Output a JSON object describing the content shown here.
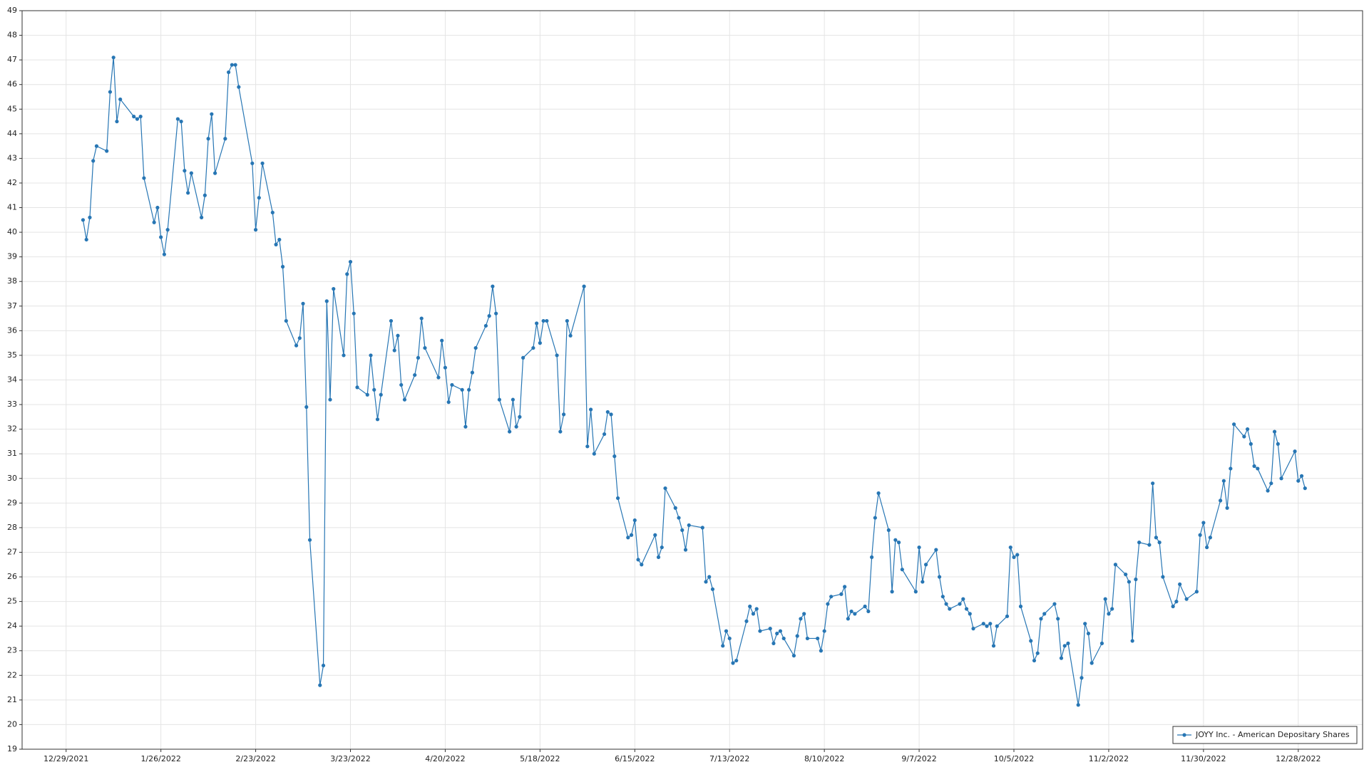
{
  "chart_data": {
    "type": "line",
    "x": [
      "1/3/2022",
      "1/4/2022",
      "1/5/2022",
      "1/6/2022",
      "1/7/2022",
      "1/10/2022",
      "1/11/2022",
      "1/12/2022",
      "1/13/2022",
      "1/14/2022",
      "1/18/2022",
      "1/19/2022",
      "1/20/2022",
      "1/21/2022",
      "1/24/2022",
      "1/25/2022",
      "1/26/2022",
      "1/27/2022",
      "1/28/2022",
      "1/31/2022",
      "2/1/2022",
      "2/2/2022",
      "2/3/2022",
      "2/4/2022",
      "2/7/2022",
      "2/8/2022",
      "2/9/2022",
      "2/10/2022",
      "2/11/2022",
      "2/14/2022",
      "2/15/2022",
      "2/16/2022",
      "2/17/2022",
      "2/18/2022",
      "2/22/2022",
      "2/23/2022",
      "2/24/2022",
      "2/25/2022",
      "2/28/2022",
      "3/1/2022",
      "3/2/2022",
      "3/3/2022",
      "3/4/2022",
      "3/7/2022",
      "3/8/2022",
      "3/9/2022",
      "3/10/2022",
      "3/11/2022",
      "3/14/2022",
      "3/15/2022",
      "3/16/2022",
      "3/17/2022",
      "3/18/2022",
      "3/21/2022",
      "3/22/2022",
      "3/23/2022",
      "3/24/2022",
      "3/25/2022",
      "3/28/2022",
      "3/29/2022",
      "3/30/2022",
      "3/31/2022",
      "4/1/2022",
      "4/4/2022",
      "4/5/2022",
      "4/6/2022",
      "4/7/2022",
      "4/8/2022",
      "4/11/2022",
      "4/12/2022",
      "4/13/2022",
      "4/14/2022",
      "4/18/2022",
      "4/19/2022",
      "4/20/2022",
      "4/21/2022",
      "4/22/2022",
      "4/25/2022",
      "4/26/2022",
      "4/27/2022",
      "4/28/2022",
      "4/29/2022",
      "5/2/2022",
      "5/3/2022",
      "5/4/2022",
      "5/5/2022",
      "5/6/2022",
      "5/9/2022",
      "5/10/2022",
      "5/11/2022",
      "5/12/2022",
      "5/13/2022",
      "5/16/2022",
      "5/17/2022",
      "5/18/2022",
      "5/19/2022",
      "5/20/2022",
      "5/23/2022",
      "5/24/2022",
      "5/25/2022",
      "5/26/2022",
      "5/27/2022",
      "5/31/2022",
      "6/1/2022",
      "6/2/2022",
      "6/3/2022",
      "6/6/2022",
      "6/7/2022",
      "6/8/2022",
      "6/9/2022",
      "6/10/2022",
      "6/13/2022",
      "6/14/2022",
      "6/15/2022",
      "6/16/2022",
      "6/17/2022",
      "6/21/2022",
      "6/22/2022",
      "6/23/2022",
      "6/24/2022",
      "6/27/2022",
      "6/28/2022",
      "6/29/2022",
      "6/30/2022",
      "7/1/2022",
      "7/5/2022",
      "7/6/2022",
      "7/7/2022",
      "7/8/2022",
      "7/11/2022",
      "7/12/2022",
      "7/13/2022",
      "7/14/2022",
      "7/15/2022",
      "7/18/2022",
      "7/19/2022",
      "7/20/2022",
      "7/21/2022",
      "7/22/2022",
      "7/25/2022",
      "7/26/2022",
      "7/27/2022",
      "7/28/2022",
      "7/29/2022",
      "8/1/2022",
      "8/2/2022",
      "8/3/2022",
      "8/4/2022",
      "8/5/2022",
      "8/8/2022",
      "8/9/2022",
      "8/10/2022",
      "8/11/2022",
      "8/12/2022",
      "8/15/2022",
      "8/16/2022",
      "8/17/2022",
      "8/18/2022",
      "8/19/2022",
      "8/22/2022",
      "8/23/2022",
      "8/24/2022",
      "8/25/2022",
      "8/26/2022",
      "8/29/2022",
      "8/30/2022",
      "8/31/2022",
      "9/1/2022",
      "9/2/2022",
      "9/6/2022",
      "9/7/2022",
      "9/8/2022",
      "9/9/2022",
      "9/12/2022",
      "9/13/2022",
      "9/14/2022",
      "9/15/2022",
      "9/16/2022",
      "9/19/2022",
      "9/20/2022",
      "9/21/2022",
      "9/22/2022",
      "9/23/2022",
      "9/26/2022",
      "9/27/2022",
      "9/28/2022",
      "9/29/2022",
      "9/30/2022",
      "10/3/2022",
      "10/4/2022",
      "10/5/2022",
      "10/6/2022",
      "10/7/2022",
      "10/10/2022",
      "10/11/2022",
      "10/12/2022",
      "10/13/2022",
      "10/14/2022",
      "10/17/2022",
      "10/18/2022",
      "10/19/2022",
      "10/20/2022",
      "10/21/2022",
      "10/24/2022",
      "10/25/2022",
      "10/26/2022",
      "10/27/2022",
      "10/28/2022",
      "10/31/2022",
      "11/1/2022",
      "11/2/2022",
      "11/3/2022",
      "11/4/2022",
      "11/7/2022",
      "11/8/2022",
      "11/9/2022",
      "11/10/2022",
      "11/11/2022",
      "11/14/2022",
      "11/15/2022",
      "11/16/2022",
      "11/17/2022",
      "11/18/2022",
      "11/21/2022",
      "11/22/2022",
      "11/23/2022",
      "11/25/2022",
      "11/28/2022",
      "11/29/2022",
      "11/30/2022",
      "12/1/2022",
      "12/2/2022",
      "12/5/2022",
      "12/6/2022",
      "12/7/2022",
      "12/8/2022",
      "12/9/2022",
      "12/12/2022",
      "12/13/2022",
      "12/14/2022",
      "12/15/2022",
      "12/16/2022",
      "12/19/2022",
      "12/20/2022",
      "12/21/2022",
      "12/22/2022",
      "12/23/2022",
      "12/27/2022",
      "12/28/2022",
      "12/29/2022",
      "12/30/2022"
    ],
    "series": [
      {
        "name": "JOYY Inc. - American Depositary Shares",
        "color": "#2776b4",
        "values": [
          40.5,
          39.7,
          40.6,
          42.9,
          43.5,
          43.3,
          45.7,
          47.1,
          44.5,
          45.4,
          44.7,
          44.6,
          44.7,
          42.2,
          40.4,
          41,
          39.8,
          39.1,
          40.1,
          44.6,
          44.5,
          42.5,
          41.6,
          42.4,
          40.6,
          41.5,
          43.8,
          44.8,
          42.4,
          43.8,
          46.5,
          46.8,
          46.8,
          45.9,
          42.8,
          40.1,
          41.4,
          42.8,
          40.8,
          39.5,
          39.7,
          38.6,
          36.4,
          35.4,
          35.7,
          37.1,
          32.9,
          27.5,
          21.6,
          22.4,
          37.2,
          33.2,
          37.7,
          35,
          38.3,
          38.8,
          36.7,
          33.7,
          33.4,
          35,
          33.6,
          32.4,
          33.4,
          36.4,
          35.2,
          35.8,
          33.8,
          33.2,
          34.2,
          34.9,
          36.5,
          35.3,
          34.1,
          35.6,
          34.5,
          33.1,
          33.8,
          33.6,
          32.1,
          33.6,
          34.3,
          35.3,
          36.2,
          36.6,
          37.8,
          36.7,
          33.2,
          31.9,
          33.2,
          32.1,
          32.5,
          34.9,
          35.3,
          36.3,
          35.5,
          36.4,
          36.4,
          35,
          31.9,
          32.6,
          36.4,
          35.8,
          37.8,
          31.3,
          32.8,
          31,
          31.8,
          32.7,
          32.6,
          30.9,
          29.2,
          27.6,
          27.7,
          28.3,
          26.7,
          26.5,
          27.7,
          26.8,
          27.2,
          29.6,
          28.8,
          28.4,
          27.9,
          27.1,
          28.1,
          28,
          25.8,
          26,
          25.5,
          23.2,
          23.8,
          23.5,
          22.5,
          22.6,
          24.2,
          24.8,
          24.5,
          24.7,
          23.8,
          23.9,
          23.3,
          23.7,
          23.8,
          23.5,
          22.8,
          23.6,
          24.3,
          24.5,
          23.5,
          23.5,
          23,
          23.8,
          24.9,
          25.2,
          25.3,
          25.6,
          24.3,
          24.6,
          24.5,
          24.8,
          24.6,
          26.8,
          28.4,
          29.4,
          27.9,
          25.4,
          27.5,
          27.4,
          26.3,
          25.4,
          27.2,
          25.8,
          26.5,
          27.1,
          26,
          25.2,
          24.9,
          24.7,
          24.9,
          25.1,
          24.7,
          24.5,
          23.9,
          24.1,
          24,
          24.1,
          23.2,
          24,
          24.4,
          27.2,
          26.8,
          26.9,
          24.8,
          23.4,
          22.6,
          22.9,
          24.3,
          24.5,
          24.9,
          24.3,
          22.7,
          23.2,
          23.3,
          20.8,
          21.9,
          24.1,
          23.7,
          22.5,
          23.3,
          25.1,
          24.5,
          24.7,
          26.5,
          26.1,
          25.8,
          23.4,
          25.9,
          27.4,
          27.3,
          29.8,
          27.6,
          27.4,
          26,
          24.8,
          25,
          25.7,
          25.1,
          25.4,
          27.7,
          28.2,
          27.2,
          27.6,
          29.1,
          29.9,
          28.8,
          30.4,
          32.2,
          31.7,
          32,
          31.4,
          30.5,
          30.4,
          29.5,
          29.8,
          31.9,
          31.4,
          30,
          31.1,
          29.9,
          30.1,
          29.6
        ]
      }
    ],
    "xlim": [
      "12/16/2021",
      "1/16/2023"
    ],
    "xticks": [
      "12/29/2021",
      "1/26/2022",
      "2/23/2022",
      "3/23/2022",
      "4/20/2022",
      "5/18/2022",
      "6/15/2022",
      "7/13/2022",
      "8/10/2022",
      "9/7/2022",
      "10/5/2022",
      "11/2/2022",
      "11/30/2022",
      "12/28/2022"
    ],
    "ylim": [
      19,
      49
    ],
    "yticks": [
      19,
      20,
      21,
      22,
      23,
      24,
      25,
      26,
      27,
      28,
      29,
      30,
      31,
      32,
      33,
      34,
      35,
      36,
      37,
      38,
      39,
      40,
      41,
      42,
      43,
      44,
      45,
      46,
      47,
      48,
      49
    ],
    "grid": true,
    "legend": "lower right"
  }
}
